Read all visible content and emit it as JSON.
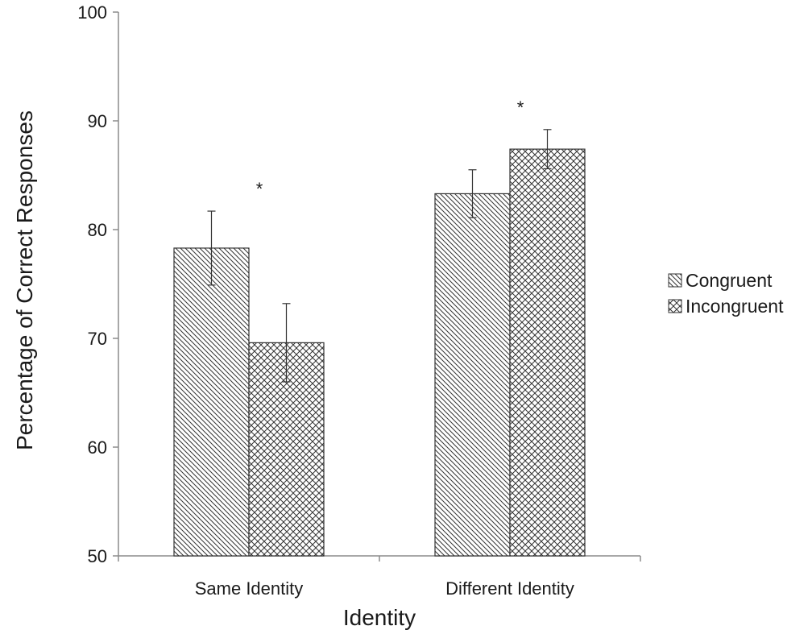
{
  "chart_data": {
    "type": "bar",
    "xlabel": "Identity",
    "ylabel": "Percentage of Correct Responses",
    "ylim": [
      50,
      100
    ],
    "yticks": [
      50,
      60,
      70,
      80,
      90,
      100
    ],
    "categories": [
      "Same Identity",
      "Different Identity"
    ],
    "series": [
      {
        "name": "Congruent",
        "pattern": "diagonal-hatch",
        "values": [
          78.3,
          83.3
        ],
        "errors": [
          3.4,
          2.2
        ]
      },
      {
        "name": "Incongruent",
        "pattern": "crosshatch",
        "values": [
          69.6,
          87.4
        ],
        "errors": [
          3.6,
          1.8
        ]
      }
    ],
    "significance": [
      {
        "category": "Same Identity",
        "label": "*"
      },
      {
        "category": "Different Identity",
        "label": "*"
      }
    ],
    "legend_position": "right",
    "grid": false,
    "colors": {
      "bar_stroke": "#333333",
      "hatch": "#333333",
      "axis": "#8c8c8c",
      "error_bar": "#333333"
    }
  }
}
